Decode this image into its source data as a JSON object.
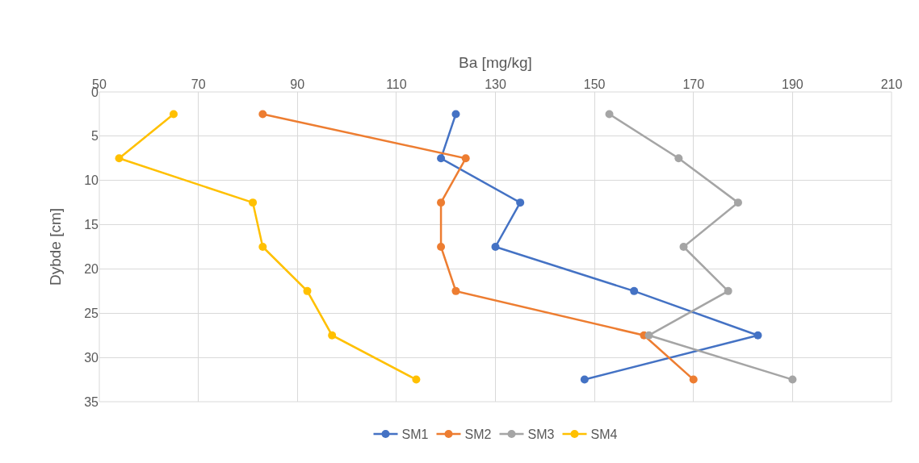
{
  "chart_data": {
    "type": "line",
    "xlabel": "Ba [mg/kg]",
    "ylabel": "Dybde [cm]",
    "xlim": [
      50,
      210
    ],
    "xticks": [
      50,
      70,
      90,
      110,
      130,
      150,
      170,
      190,
      210
    ],
    "ylim": [
      35,
      0
    ],
    "yticks": [
      0,
      5,
      10,
      15,
      20,
      25,
      30,
      35
    ],
    "grid": true,
    "legend": "bottom",
    "marker": "circle",
    "line_style": "solid",
    "series": [
      {
        "name": "SM1",
        "color": "#4472c4",
        "x": [
          122,
          119,
          135,
          130,
          158,
          183,
          148
        ],
        "values": [
          2.5,
          7.5,
          12.5,
          17.5,
          22.5,
          27.5,
          32.5
        ]
      },
      {
        "name": "SM2",
        "color": "#ed7d31",
        "x": [
          83,
          124,
          119,
          119,
          122,
          160,
          170
        ],
        "values": [
          2.5,
          7.5,
          12.5,
          17.5,
          22.5,
          27.5,
          32.5
        ]
      },
      {
        "name": "SM3",
        "color": "#a5a5a5",
        "x": [
          153,
          167,
          179,
          168,
          177,
          161,
          190
        ],
        "values": [
          2.5,
          7.5,
          12.5,
          17.5,
          22.5,
          27.5,
          32.5
        ]
      },
      {
        "name": "SM4",
        "color": "#ffc000",
        "x": [
          65,
          54,
          81,
          83,
          92,
          97,
          114
        ],
        "values": [
          2.5,
          7.5,
          12.5,
          17.5,
          22.5,
          27.5,
          32.5
        ]
      }
    ]
  }
}
